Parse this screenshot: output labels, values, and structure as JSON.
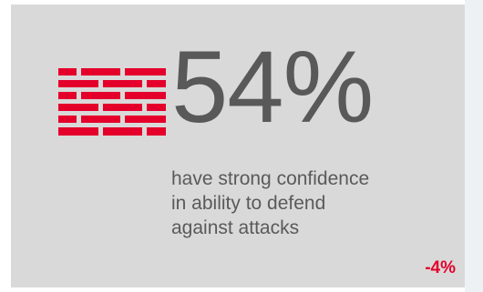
{
  "stat": {
    "value": "54%",
    "caption_lines": [
      "have strong confidence",
      "in ability to defend",
      "against attacks"
    ],
    "change": "-4%"
  },
  "icon": {
    "name": "brick-wall-icon",
    "color": "#e4002b"
  },
  "colors": {
    "card_background": "#d9d9d9",
    "stat_text": "#595959",
    "accent": "#e4002b"
  }
}
